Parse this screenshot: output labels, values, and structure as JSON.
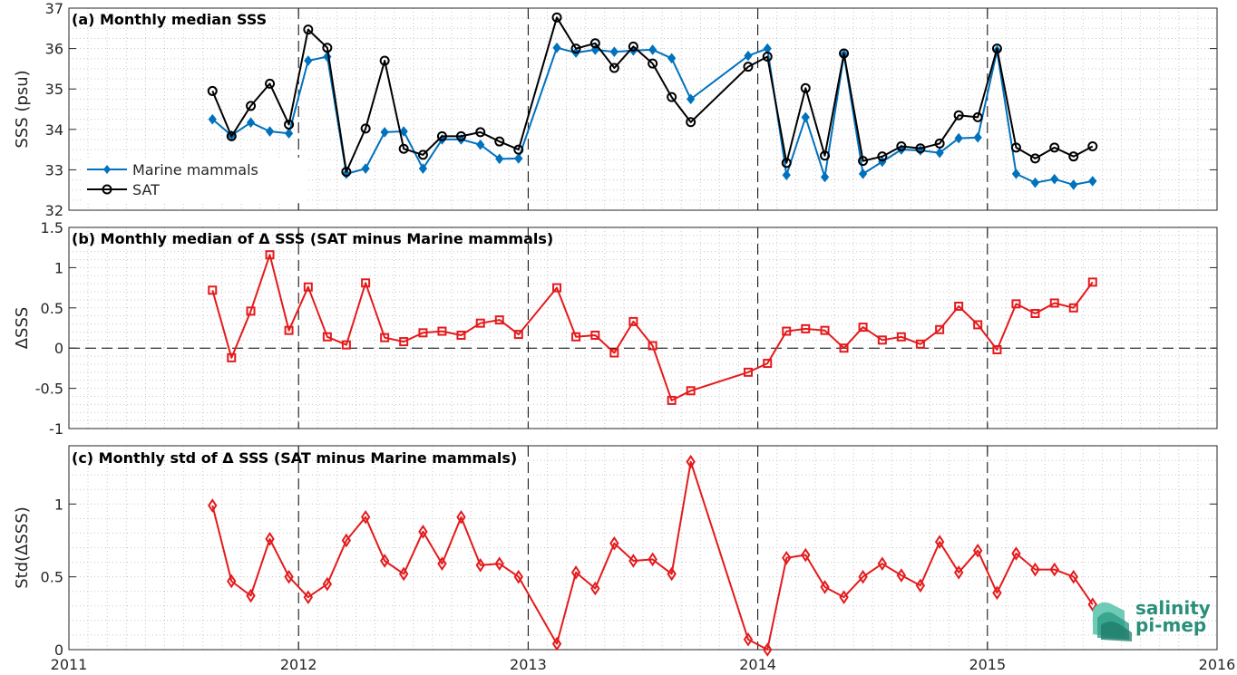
{
  "logo": {
    "line1": "salinity",
    "line2": "pi-mep"
  },
  "chart_data": [
    {
      "type": "line",
      "title": "(a) Monthly median SSS",
      "ylabel": "SSS (psu)",
      "xlabel": "",
      "xlim": [
        2011,
        2016
      ],
      "ylim": [
        32,
        37
      ],
      "yticks": [
        32,
        33,
        34,
        35,
        36,
        37
      ],
      "ytick_labels": [
        "32",
        "33",
        "34",
        "35",
        "36",
        "37"
      ],
      "grid": "minor-dotted",
      "year_lines": [
        2012,
        2013,
        2014,
        2015
      ],
      "legend": {
        "placement": "bottom-left"
      },
      "series": [
        {
          "name": "Marine mammals",
          "color": "#0072BD",
          "marker": "filled-diamond",
          "x": [
            2011.625,
            2011.708,
            2011.792,
            2011.875,
            2011.958,
            2012.042,
            2012.125,
            2012.208,
            2012.292,
            2012.375,
            2012.458,
            2012.542,
            2012.625,
            2012.708,
            2012.792,
            2012.875,
            2012.958,
            2013.125,
            2013.208,
            2013.292,
            2013.375,
            2013.458,
            2013.542,
            2013.625,
            2013.708,
            2013.958,
            2014.042,
            2014.125,
            2014.208,
            2014.292,
            2014.375,
            2014.458,
            2014.542,
            2014.625,
            2014.708,
            2014.792,
            2014.875,
            2014.958,
            2015.042,
            2015.125,
            2015.208,
            2015.292,
            2015.375,
            2015.458
          ],
          "y": [
            34.25,
            33.85,
            34.17,
            33.95,
            33.9,
            35.7,
            35.8,
            32.9,
            33.03,
            33.93,
            33.95,
            33.03,
            33.75,
            33.75,
            33.62,
            33.27,
            33.28,
            36.02,
            35.9,
            35.97,
            35.92,
            35.95,
            35.97,
            35.76,
            34.75,
            35.82,
            36.0,
            32.87,
            34.3,
            32.82,
            35.85,
            32.9,
            33.2,
            33.5,
            33.48,
            33.42,
            33.78,
            33.8,
            35.95,
            32.9,
            32.68,
            32.77,
            32.63,
            32.72
          ]
        },
        {
          "name": "SAT",
          "color": "#000000",
          "marker": "open-circle",
          "x": [
            2011.625,
            2011.708,
            2011.792,
            2011.875,
            2011.958,
            2012.042,
            2012.125,
            2012.208,
            2012.292,
            2012.375,
            2012.458,
            2012.542,
            2012.625,
            2012.708,
            2012.792,
            2012.875,
            2012.958,
            2013.125,
            2013.208,
            2013.292,
            2013.375,
            2013.458,
            2013.542,
            2013.625,
            2013.708,
            2013.958,
            2014.042,
            2014.125,
            2014.208,
            2014.292,
            2014.375,
            2014.458,
            2014.542,
            2014.625,
            2014.708,
            2014.792,
            2014.875,
            2014.958,
            2015.042,
            2015.125,
            2015.208,
            2015.292,
            2015.375,
            2015.458
          ],
          "y": [
            34.95,
            33.83,
            34.58,
            35.13,
            34.12,
            36.47,
            36.02,
            32.95,
            34.02,
            35.7,
            33.52,
            33.37,
            33.83,
            33.83,
            33.93,
            33.7,
            33.5,
            36.77,
            36.0,
            36.13,
            35.52,
            36.05,
            35.63,
            34.8,
            34.18,
            35.55,
            35.8,
            33.17,
            35.02,
            33.35,
            35.88,
            33.22,
            33.33,
            33.58,
            33.53,
            33.65,
            34.35,
            34.3,
            36.0,
            33.55,
            33.28,
            33.55,
            33.33,
            33.58
          ]
        }
      ]
    },
    {
      "type": "line",
      "title": "(b) Monthly median of Δ SSS (SAT minus Marine mammals)",
      "ylabel": "ΔSSS",
      "xlabel": "",
      "xlim": [
        2011,
        2016
      ],
      "ylim": [
        -1,
        1.5
      ],
      "yticks": [
        -1,
        -0.5,
        0,
        0.5,
        1,
        1.5
      ],
      "ytick_labels": [
        "-1",
        "-0.5",
        "0",
        "0.5",
        "1",
        "1.5"
      ],
      "grid": "minor-dotted",
      "zero_line": true,
      "year_lines": [
        2012,
        2013,
        2014,
        2015
      ],
      "series": [
        {
          "color": "#E41A1C",
          "marker": "open-square",
          "x": [
            2011.625,
            2011.708,
            2011.792,
            2011.875,
            2011.958,
            2012.042,
            2012.125,
            2012.208,
            2012.292,
            2012.375,
            2012.458,
            2012.542,
            2012.625,
            2012.708,
            2012.792,
            2012.875,
            2012.958,
            2013.125,
            2013.208,
            2013.292,
            2013.375,
            2013.458,
            2013.542,
            2013.625,
            2013.708,
            2013.958,
            2014.042,
            2014.125,
            2014.208,
            2014.292,
            2014.375,
            2014.458,
            2014.542,
            2014.625,
            2014.708,
            2014.792,
            2014.875,
            2014.958,
            2015.042,
            2015.125,
            2015.208,
            2015.292,
            2015.375,
            2015.458
          ],
          "y": [
            0.72,
            -0.12,
            0.46,
            1.16,
            0.22,
            0.76,
            0.14,
            0.04,
            0.81,
            0.13,
            0.08,
            0.19,
            0.21,
            0.16,
            0.31,
            0.35,
            0.17,
            0.75,
            0.14,
            0.16,
            -0.06,
            0.33,
            0.03,
            -0.65,
            -0.53,
            -0.3,
            -0.19,
            0.21,
            0.24,
            0.22,
            0.0,
            0.26,
            0.1,
            0.14,
            0.05,
            0.23,
            0.52,
            0.29,
            -0.02,
            0.55,
            0.43,
            0.56,
            0.5,
            0.82
          ]
        }
      ]
    },
    {
      "type": "line",
      "title": "(c) Monthly std of Δ SSS (SAT minus Marine mammals)",
      "ylabel": "Std(ΔSSS)",
      "xlabel": "",
      "xlim": [
        2011,
        2016
      ],
      "ylim": [
        0,
        1.4
      ],
      "yticks": [
        0,
        0.5,
        1
      ],
      "ytick_labels": [
        "0",
        "0.5",
        "1"
      ],
      "xticks": [
        2011,
        2012,
        2013,
        2014,
        2015,
        2016
      ],
      "xtick_labels": [
        "2011",
        "2012",
        "2013",
        "2014",
        "2015",
        "2016"
      ],
      "grid": "minor-dotted",
      "year_lines": [
        2012,
        2013,
        2014,
        2015
      ],
      "series": [
        {
          "color": "#E41A1C",
          "marker": "open-diamond",
          "x": [
            2011.625,
            2011.708,
            2011.792,
            2011.875,
            2011.958,
            2012.042,
            2012.125,
            2012.208,
            2012.292,
            2012.375,
            2012.458,
            2012.542,
            2012.625,
            2012.708,
            2012.792,
            2012.875,
            2012.958,
            2013.125,
            2013.208,
            2013.292,
            2013.375,
            2013.458,
            2013.542,
            2013.625,
            2013.708,
            2013.958,
            2014.042,
            2014.125,
            2014.208,
            2014.292,
            2014.375,
            2014.458,
            2014.542,
            2014.625,
            2014.708,
            2014.792,
            2014.875,
            2014.958,
            2015.042,
            2015.125,
            2015.208,
            2015.292,
            2015.375,
            2015.458
          ],
          "y": [
            0.99,
            0.47,
            0.37,
            0.76,
            0.5,
            0.36,
            0.45,
            0.75,
            0.91,
            0.61,
            0.52,
            0.81,
            0.59,
            0.91,
            0.58,
            0.59,
            0.5,
            0.04,
            0.53,
            0.42,
            0.73,
            0.61,
            0.62,
            0.52,
            1.29,
            0.07,
            0.0,
            0.63,
            0.65,
            0.43,
            0.36,
            0.5,
            0.59,
            0.51,
            0.44,
            0.74,
            0.53,
            0.68,
            0.39,
            0.66,
            0.55,
            0.55,
            0.5,
            0.31
          ]
        }
      ]
    }
  ]
}
